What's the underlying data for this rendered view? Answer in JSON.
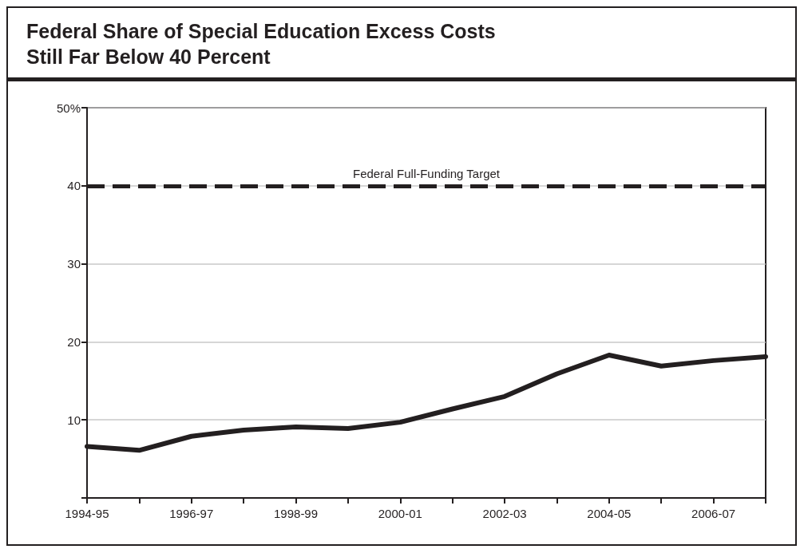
{
  "chart_data": {
    "type": "line",
    "title": "Federal Share of Special Education Excess Costs\nStill Far Below 40 Percent",
    "categories": [
      "1994-95",
      null,
      "1996-97",
      null,
      "1998-99",
      null,
      "2000-01",
      null,
      "2002-03",
      null,
      "2004-05",
      null,
      "2006-07",
      null
    ],
    "series": [
      {
        "color": "#231f20",
        "values": [
          6.6,
          6.1,
          7.9,
          8.7,
          9.1,
          8.9,
          9.7,
          11.4,
          13.0,
          15.9,
          18.3,
          16.9,
          17.6,
          18.1
        ]
      }
    ],
    "ylim": [
      0,
      50
    ],
    "yticks": [
      {
        "value": 0,
        "label": null
      },
      10,
      20,
      30,
      40,
      {
        "value": 50,
        "label": "50%"
      }
    ],
    "grid": "y",
    "marker": "none",
    "line_style": "solid",
    "ref_lines": [
      {
        "axis": "y",
        "value": 40,
        "label": "Federal Full-Funding Target",
        "color": "#231f20",
        "line_style": "dashed"
      }
    ]
  }
}
